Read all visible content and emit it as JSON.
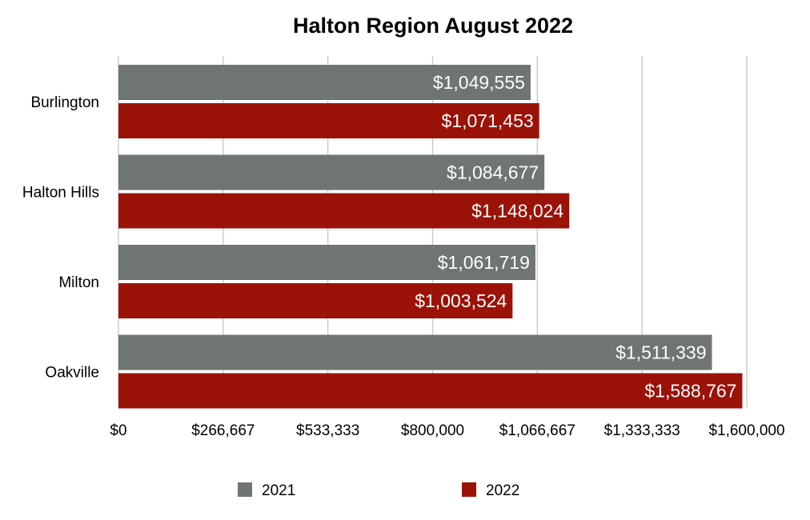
{
  "chart_data": {
    "type": "bar",
    "orientation": "horizontal",
    "title": "Halton Region August 2022",
    "xlabel": "",
    "ylabel": "",
    "categories": [
      "Burlington",
      "Halton Hills",
      "Milton",
      "Oakville"
    ],
    "series": [
      {
        "name": "2021",
        "color": "#6f7571",
        "values": [
          1049555,
          1084677,
          1061719,
          1511339
        ],
        "labels": [
          "$1,049,555",
          "$1,084,677",
          "$1,061,719",
          "$1,511,339"
        ]
      },
      {
        "name": "2022",
        "color": "#9b1208",
        "values": [
          1071453,
          1148024,
          1003524,
          1588767
        ],
        "labels": [
          "$1,071,453",
          "$1,148,024",
          "$1,003,524",
          "$1,588,767"
        ]
      }
    ],
    "xlim": [
      0,
      1600000
    ],
    "ticks": [
      0,
      266667,
      533333,
      800000,
      1066667,
      1333333,
      1600000
    ],
    "tick_labels": [
      "$0",
      "$266,667",
      "$533,333",
      "$800,000",
      "$1,066,667",
      "$1,333,333",
      "$1,600,000"
    ],
    "grid": true,
    "legend_position": "bottom"
  }
}
